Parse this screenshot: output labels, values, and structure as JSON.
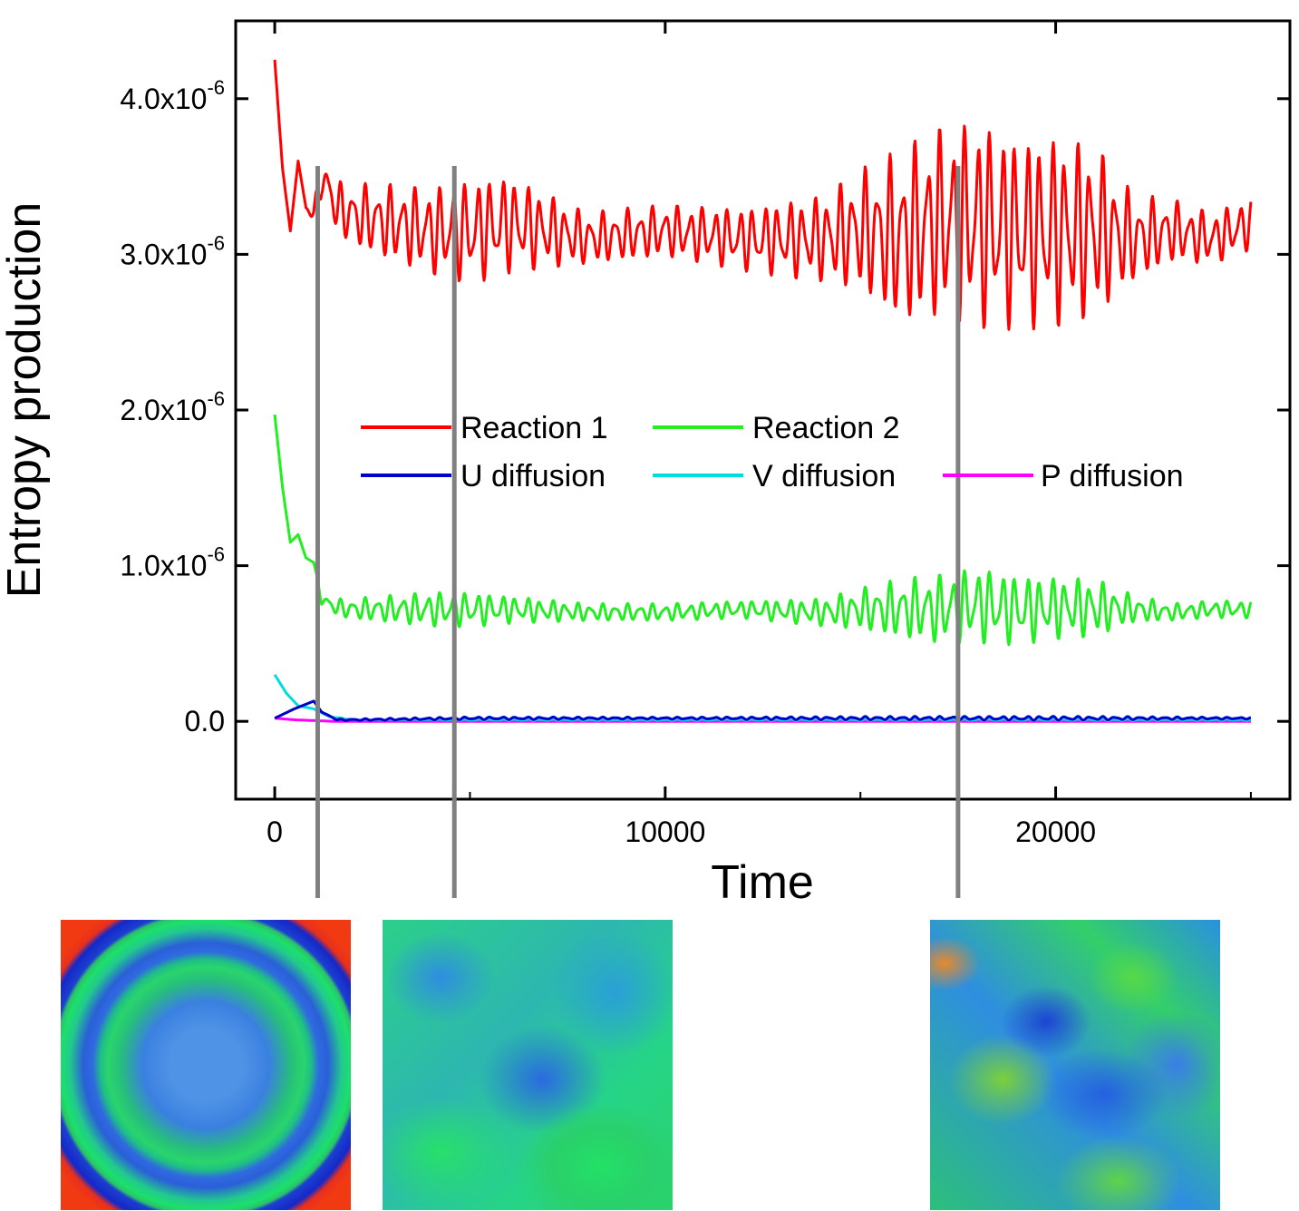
{
  "chart_data": {
    "type": "line",
    "title": "",
    "xlabel": "Time",
    "ylabel": "Entropy production",
    "xlim": [
      -1000,
      26000
    ],
    "ylim": [
      -5e-07,
      4.5e-06
    ],
    "x_ticks": [
      0,
      10000,
      20000
    ],
    "x_tick_labels": [
      "0",
      "10000",
      "20000"
    ],
    "y_ticks": [
      0,
      1e-06,
      2e-06,
      3e-06,
      4e-06
    ],
    "y_tick_labels": [
      {
        "base": "0.0",
        "exp": ""
      },
      {
        "base": "1.0x10",
        "exp": "-6"
      },
      {
        "base": "2.0x10",
        "exp": "-6"
      },
      {
        "base": "3.0x10",
        "exp": "-6"
      },
      {
        "base": "4.0x10",
        "exp": "-6"
      }
    ],
    "grid": false,
    "legend_position": "center",
    "series": [
      {
        "name": "Reaction 1",
        "color": "#ff0000",
        "x": [
          0,
          200,
          400,
          600,
          800,
          1000,
          1200,
          1600,
          2000,
          3000,
          4000,
          5000,
          6000,
          8000,
          10000,
          12000,
          14000,
          15000,
          16000,
          17000,
          18000,
          19000,
          20000,
          21000,
          22000,
          23000,
          24000,
          25000
        ],
        "y": [
          4.25e-06,
          3.55e-06,
          3.15e-06,
          3.6e-06,
          3.3e-06,
          3.25e-06,
          3.5e-06,
          3.3e-06,
          3.25e-06,
          3.2e-06,
          3.15e-06,
          3.15e-06,
          3.2e-06,
          3.1e-06,
          3.15e-06,
          3.1e-06,
          3.1e-06,
          3.15e-06,
          3.1e-06,
          3.2e-06,
          3.2e-06,
          3.15e-06,
          3.15e-06,
          3.15e-06,
          3.1e-06,
          3.15e-06,
          3.1e-06,
          3.2e-06
        ],
        "amplitude": [
          0,
          0,
          0,
          0,
          0,
          5e-08,
          1.2e-07,
          1.5e-07,
          1.8e-07,
          2.2e-07,
          2.5e-07,
          3e-07,
          2.8e-07,
          1.5e-07,
          1.5e-07,
          1.8e-07,
          2.5e-07,
          3.5e-07,
          5e-07,
          5.5e-07,
          6e-07,
          5.5e-07,
          5.5e-07,
          5e-07,
          2.5e-07,
          1.8e-07,
          1.5e-07,
          1.5e-07
        ]
      },
      {
        "name": "Reaction 2",
        "color": "#22ee22",
        "x": [
          0,
          200,
          400,
          600,
          800,
          1000,
          1200,
          1600,
          2000,
          3000,
          4000,
          5000,
          6000,
          8000,
          10000,
          12000,
          14000,
          15000,
          16000,
          17000,
          18000,
          19000,
          20000,
          21000,
          22000,
          23000,
          24000,
          25000
        ],
        "y": [
          1.97e-06,
          1.5e-06,
          1.15e-06,
          1.2e-06,
          1.05e-06,
          1.02e-06,
          7.8e-07,
          7.3e-07,
          7.2e-07,
          7.2e-07,
          7.2e-07,
          7.2e-07,
          7.2e-07,
          7e-07,
          7e-07,
          7.2e-07,
          7e-07,
          7.2e-07,
          7.2e-07,
          7.2e-07,
          7.5e-07,
          7.2e-07,
          7.3e-07,
          7.3e-07,
          7.2e-07,
          7e-07,
          7.2e-07,
          7.2e-07
        ],
        "amplitude": [
          0,
          0,
          0,
          0,
          0,
          0,
          3e-08,
          5e-08,
          6e-08,
          8e-08,
          1e-07,
          1e-07,
          8e-08,
          5e-08,
          5e-08,
          5e-08,
          8e-08,
          1.2e-07,
          1.7e-07,
          2e-07,
          2.2e-07,
          2e-07,
          1.8e-07,
          1.7e-07,
          8e-08,
          5e-08,
          5e-08,
          5e-08
        ]
      },
      {
        "name": "U diffusion",
        "color": "#0000cc",
        "x": [
          0,
          500,
          1000,
          1200,
          1600,
          2000,
          5000,
          10000,
          15000,
          20000,
          25000
        ],
        "y": [
          2e-08,
          8e-08,
          1.3e-07,
          6e-08,
          1e-08,
          1e-08,
          2e-08,
          2e-08,
          2e-08,
          2e-08,
          2e-08
        ],
        "amplitude": [
          0,
          0,
          0,
          0,
          4e-09,
          5e-09,
          8e-09,
          6e-09,
          1e-08,
          1.2e-08,
          5e-09
        ]
      },
      {
        "name": "V diffusion",
        "color": "#00dddd",
        "x": [
          0,
          300,
          600,
          1000,
          1400,
          2000,
          5000,
          10000,
          15000,
          20000,
          25000
        ],
        "y": [
          3e-07,
          1.8e-07,
          1e-07,
          8e-08,
          3e-08,
          1e-08,
          1e-08,
          1e-08,
          1e-08,
          1e-08,
          1e-08
        ],
        "amplitude": [
          0,
          0,
          0,
          0,
          0,
          3e-09,
          4e-09,
          4e-09,
          5e-09,
          5e-09,
          4e-09
        ]
      },
      {
        "name": "P diffusion",
        "color": "#ff00ff",
        "x": [
          0,
          500,
          1000,
          1500,
          2000,
          25000
        ],
        "y": [
          2e-08,
          1e-08,
          5e-09,
          0.0,
          0.0,
          0.0
        ],
        "amplitude": [
          0,
          0,
          0,
          0,
          0,
          0
        ]
      }
    ],
    "markers_x": [
      1100,
      4600,
      17500
    ],
    "marker_color": "#808080"
  }
}
